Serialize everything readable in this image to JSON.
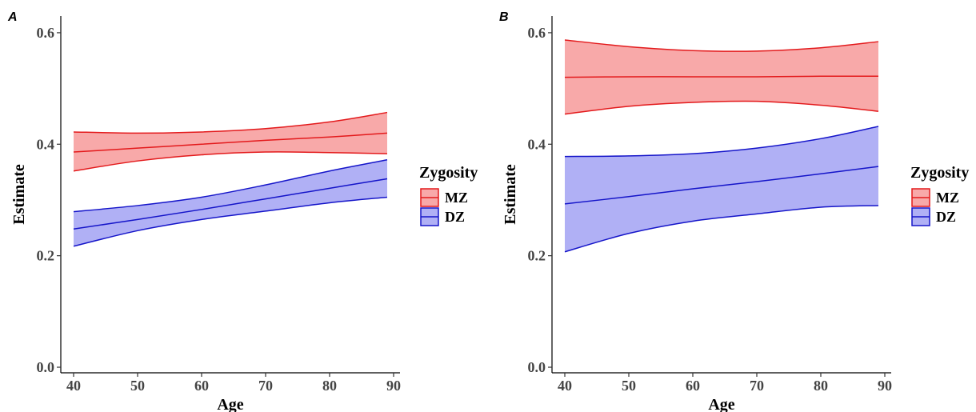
{
  "chart_data": [
    {
      "panel": "A",
      "type": "line",
      "xlabel": "Age",
      "ylabel": "Estimate",
      "xlim": [
        38,
        91
      ],
      "ylim": [
        -0.01,
        0.63
      ],
      "xticks": [
        40,
        50,
        60,
        70,
        80,
        90
      ],
      "yticks": [
        0.0,
        0.2,
        0.4,
        0.6
      ],
      "xtick_labels": [
        "40",
        "50",
        "60",
        "70",
        "80",
        "90"
      ],
      "ytick_labels": [
        "0.0",
        "0.2",
        "0.4",
        "0.6"
      ],
      "grid": false,
      "legend": {
        "title": "Zygosity",
        "placement": "right",
        "entries": [
          "MZ",
          "DZ"
        ]
      },
      "series": [
        {
          "name": "MZ",
          "color": "#e31a1c",
          "fill": "#f8a9a9",
          "x": [
            40,
            50,
            60,
            70,
            80,
            89
          ],
          "estimate": [
            0.386,
            0.393,
            0.4,
            0.407,
            0.413,
            0.42
          ],
          "lower": [
            0.352,
            0.37,
            0.381,
            0.386,
            0.385,
            0.383
          ],
          "upper": [
            0.422,
            0.42,
            0.422,
            0.428,
            0.44,
            0.457
          ]
        },
        {
          "name": "DZ",
          "color": "#1515c9",
          "fill": "#b0b0f5",
          "x": [
            40,
            50,
            60,
            70,
            80,
            89
          ],
          "estimate": [
            0.248,
            0.265,
            0.283,
            0.302,
            0.321,
            0.338
          ],
          "lower": [
            0.217,
            0.245,
            0.265,
            0.28,
            0.295,
            0.305
          ],
          "upper": [
            0.279,
            0.29,
            0.305,
            0.327,
            0.352,
            0.372
          ]
        }
      ]
    },
    {
      "panel": "B",
      "type": "line",
      "xlabel": "Age",
      "ylabel": "Estimate",
      "xlim": [
        38,
        91
      ],
      "ylim": [
        -0.01,
        0.63
      ],
      "xticks": [
        40,
        50,
        60,
        70,
        80,
        90
      ],
      "yticks": [
        0.0,
        0.2,
        0.4,
        0.6
      ],
      "xtick_labels": [
        "40",
        "50",
        "60",
        "70",
        "80",
        "90"
      ],
      "ytick_labels": [
        "0.0",
        "0.2",
        "0.4",
        "0.6"
      ],
      "grid": false,
      "legend": {
        "title": "Zygosity",
        "placement": "right",
        "entries": [
          "MZ",
          "DZ"
        ]
      },
      "series": [
        {
          "name": "MZ",
          "color": "#e31a1c",
          "fill": "#f8a9a9",
          "x": [
            40,
            50,
            60,
            70,
            80,
            89
          ],
          "estimate": [
            0.52,
            0.521,
            0.521,
            0.521,
            0.522,
            0.522
          ],
          "lower": [
            0.454,
            0.468,
            0.475,
            0.477,
            0.47,
            0.459
          ],
          "upper": [
            0.587,
            0.575,
            0.568,
            0.567,
            0.573,
            0.584
          ]
        },
        {
          "name": "DZ",
          "color": "#1515c9",
          "fill": "#b0b0f5",
          "x": [
            40,
            50,
            60,
            70,
            80,
            89
          ],
          "estimate": [
            0.293,
            0.306,
            0.32,
            0.333,
            0.347,
            0.36
          ],
          "lower": [
            0.207,
            0.24,
            0.262,
            0.275,
            0.287,
            0.29
          ],
          "upper": [
            0.378,
            0.379,
            0.383,
            0.393,
            0.41,
            0.432
          ]
        }
      ]
    }
  ]
}
